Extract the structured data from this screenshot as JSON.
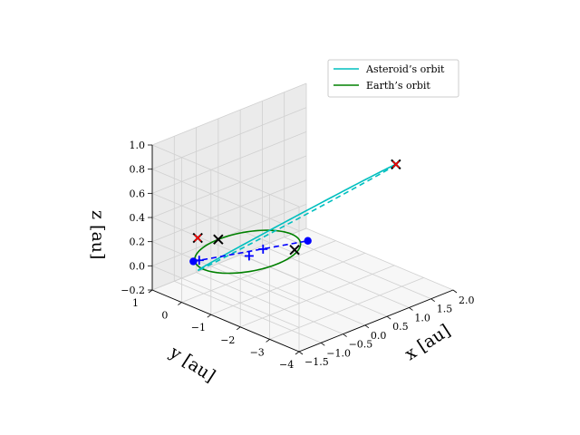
{
  "chart_data": {
    "type": "line3d",
    "title": "",
    "xlabel": "x [au]",
    "ylabel": "y [au]",
    "zlabel": "z [au]",
    "xlim": [
      -1.5,
      2.0
    ],
    "ylim": [
      -4.0,
      1.0
    ],
    "zlim": [
      -0.2,
      1.0
    ],
    "x_ticks": [
      "−1.5",
      "−1.0",
      "−0.5",
      "0.0",
      "0.5",
      "1.0",
      "1.5",
      "2.0"
    ],
    "y_ticks": [
      "−4",
      "−3",
      "−2",
      "−1",
      "0",
      "1"
    ],
    "z_ticks": [
      "−0.2",
      "0.0",
      "0.2",
      "0.4",
      "0.6",
      "0.8",
      "1.0"
    ],
    "grid": true,
    "legend_position": "upper right",
    "series": [
      {
        "name": "Asteroid’s orbit",
        "color": "#00bfbf",
        "kind": "ellipse",
        "center": [
          0.2,
          -1.4,
          0.4
        ],
        "a_vec": [
          1.1,
          -1.7,
          0.45
        ],
        "b_vec": [
          -0.3,
          0.0,
          0.0
        ],
        "dashed_hidden_half": true
      },
      {
        "name": "Earth’s orbit",
        "color": "#008000",
        "kind": "circle",
        "center": [
          0,
          0,
          0
        ],
        "radius": 1.0
      }
    ],
    "markers": [
      {
        "kind": "x",
        "color": "#000000",
        "xyz": [
          1.3,
          -3.1,
          0.85
        ]
      },
      {
        "kind": "x",
        "color": "#ff0000",
        "xyz": [
          1.3,
          -3.1,
          0.85
        ],
        "size": "small"
      },
      {
        "kind": "x",
        "color": "#000000",
        "xyz": [
          -0.6,
          0.8,
          0.12
        ]
      },
      {
        "kind": "x",
        "color": "#ff0000",
        "xyz": [
          -0.6,
          0.8,
          0.12
        ],
        "size": "small"
      },
      {
        "kind": "x",
        "color": "#000000",
        "xyz": [
          0.0,
          1.0,
          0.0
        ]
      },
      {
        "kind": "x",
        "color": "#000000",
        "xyz": [
          0.6,
          -0.7,
          0.0
        ]
      },
      {
        "kind": "dot",
        "color": "#0000ff",
        "xyz": [
          -0.9,
          0.5,
          0.0
        ]
      },
      {
        "kind": "dot",
        "color": "#0000ff",
        "xyz": [
          0.4,
          -1.45,
          0.18
        ]
      },
      {
        "kind": "plus",
        "color": "#0000ff",
        "xyz": [
          -0.3,
          -0.5,
          0.06
        ]
      },
      {
        "kind": "plus",
        "color": "#0000ff",
        "xyz": [
          -0.15,
          -0.75,
          0.12
        ]
      },
      {
        "kind": "plus",
        "color": "#0000ff",
        "xyz": [
          -0.8,
          0.45,
          0.0
        ]
      }
    ],
    "blue_dashed_segment": {
      "from": [
        -0.9,
        0.5,
        0.0
      ],
      "to": [
        0.4,
        -1.45,
        0.18
      ],
      "color": "#0000ff"
    }
  }
}
